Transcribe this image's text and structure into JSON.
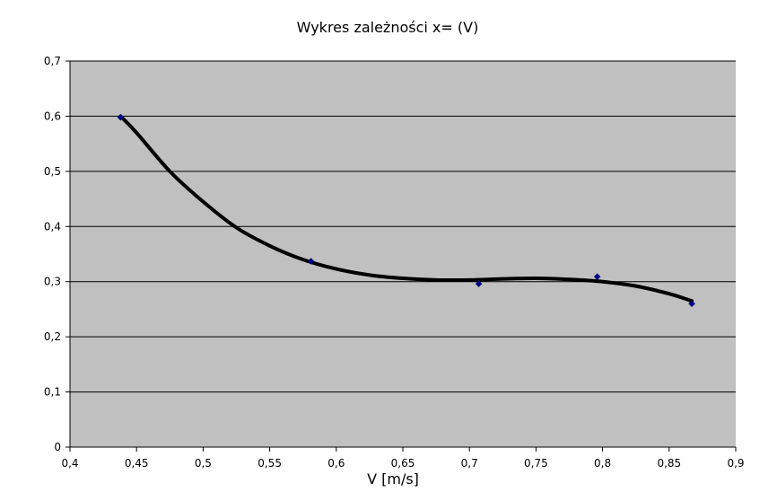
{
  "chart_data": {
    "type": "scatter",
    "title": "Wykres zależności x= (V)",
    "xlabel": "V [m/s]",
    "ylabel": "",
    "xlim": [
      0.4,
      0.9
    ],
    "ylim": [
      0,
      0.7
    ],
    "x_ticks": [
      "0,4",
      "0,45",
      "0,5",
      "0,55",
      "0,6",
      "0,65",
      "0,7",
      "0,75",
      "0,8",
      "0,85",
      "0,9"
    ],
    "y_ticks": [
      "0",
      "0,1",
      "0,2",
      "0,3",
      "0,4",
      "0,5",
      "0,6",
      "0,7"
    ],
    "grid": "horizontal",
    "legend": "none",
    "series": [
      {
        "points": [
          {
            "x": 0.438,
            "y": 0.598
          },
          {
            "x": 0.581,
            "y": 0.337
          },
          {
            "x": 0.707,
            "y": 0.296
          },
          {
            "x": 0.796,
            "y": 0.309
          },
          {
            "x": 0.867,
            "y": 0.26
          }
        ],
        "marker": "diamond",
        "color": "#000080"
      }
    ],
    "trendline": {
      "type": "polynomial",
      "color": "#000000",
      "points": [
        {
          "x": 0.438,
          "y": 0.6
        },
        {
          "x": 0.45,
          "y": 0.57
        },
        {
          "x": 0.475,
          "y": 0.5
        },
        {
          "x": 0.5,
          "y": 0.445
        },
        {
          "x": 0.525,
          "y": 0.398
        },
        {
          "x": 0.55,
          "y": 0.365
        },
        {
          "x": 0.575,
          "y": 0.34
        },
        {
          "x": 0.6,
          "y": 0.323
        },
        {
          "x": 0.625,
          "y": 0.312
        },
        {
          "x": 0.65,
          "y": 0.306
        },
        {
          "x": 0.675,
          "y": 0.303
        },
        {
          "x": 0.7,
          "y": 0.303
        },
        {
          "x": 0.725,
          "y": 0.305
        },
        {
          "x": 0.75,
          "y": 0.306
        },
        {
          "x": 0.775,
          "y": 0.304
        },
        {
          "x": 0.8,
          "y": 0.3
        },
        {
          "x": 0.825,
          "y": 0.292
        },
        {
          "x": 0.85,
          "y": 0.278
        },
        {
          "x": 0.867,
          "y": 0.265
        }
      ]
    },
    "colors": {
      "plot_background": "#c0c0c0",
      "gridline": "#000000",
      "axis": "#000000"
    }
  }
}
